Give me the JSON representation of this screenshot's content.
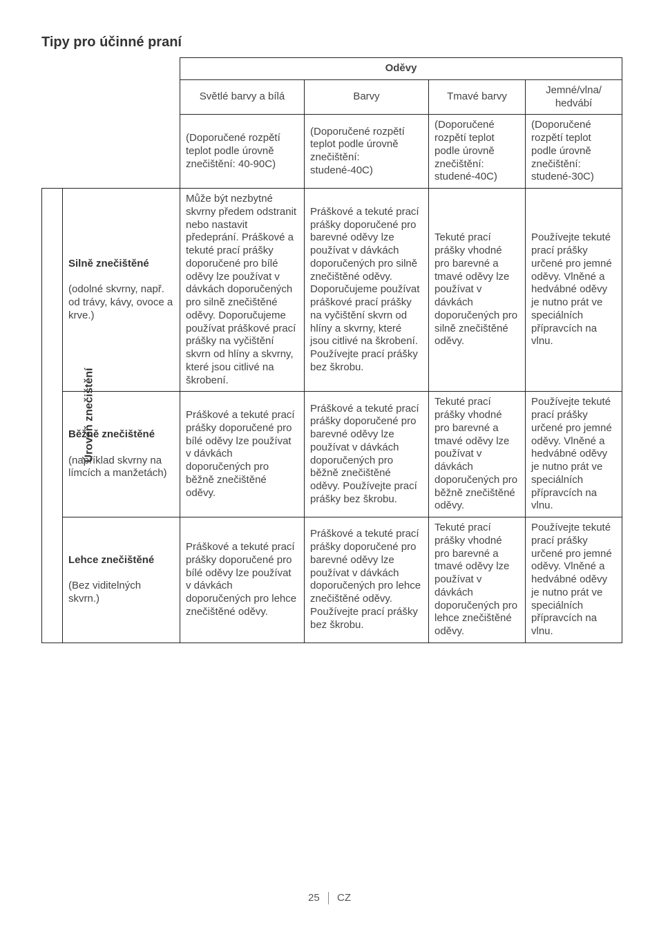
{
  "title": "Tipy pro účinné praní",
  "super_header": "Oděvy",
  "columns": {
    "c1": "Světlé barvy a bílá",
    "c2": "Barvy",
    "c3": "Tmavé barvy",
    "c4": "Jemné/vlna/\nhedvábí"
  },
  "temp_row": {
    "c1": "(Doporučené rozpětí teplot podle úrovně znečištění: 40-90C)",
    "c2": "(Doporučené rozpětí teplot podle úrovně znečištění: studené-40C)",
    "c3": "(Doporučené rozpětí teplot podle úrovně znečištění: studené-40C)",
    "c4": "(Doporučené rozpětí teplot podle úrovně znečištění: studené-30C)"
  },
  "side_label": "Úroveň znečištění",
  "rows": [
    {
      "head_bold": "Silně znečištěné",
      "head_rest": "(odolné skvrny, např. od trávy, kávy, ovoce a krve.)",
      "c1": "Může být nezbytné skvrny předem odstranit nebo nastavit předeprání. Práškové a tekuté prací prášky doporučené pro bílé oděvy lze používat v dávkách doporučených pro silně znečištěné oděvy. Doporučujeme používat práškové prací prášky na vyčištění skvrn od hlíny a skvrny, které jsou citlivé na škrobení.",
      "c2": "Práškové a tekuté prací prášky doporučené pro barevné oděvy lze používat v dávkách doporučených pro silně znečištěné oděvy. Doporučujeme používat práškové prací prášky na vyčištění skvrn od hlíny a skvrny, které jsou citlivé na škrobení. Používejte prací prášky bez škrobu.",
      "c3": "Tekuté prací prášky vhodné pro barevné a tmavé oděvy lze používat v dávkách doporučených pro silně znečištěné oděvy.",
      "c4": "Používejte tekuté prací prášky určené pro jemné oděvy. Vlněné a hedvábné oděvy je nutno prát ve speciálních přípravcích na vlnu."
    },
    {
      "head_bold": "Běžně znečištěné",
      "head_rest": "(například skvrny na límcích a manžetách)",
      "c1": "Práškové a tekuté prací prášky doporučené pro bílé oděvy lze používat v dávkách doporučených pro běžně znečištěné oděvy.",
      "c2": "Práškové a tekuté prací prášky doporučené pro barevné oděvy lze používat v dávkách doporučených pro běžně znečištěné oděvy. Používejte prací prášky bez škrobu.",
      "c3": "Tekuté prací prášky vhodné pro barevné a tmavé oděvy lze používat v dávkách doporučených pro běžně znečištěné oděvy.",
      "c4": "Používejte tekuté prací prášky určené pro jemné oděvy. Vlněné a hedvábné oděvy je nutno prát ve speciálních přípravcích na vlnu."
    },
    {
      "head_bold": "Lehce znečištěné",
      "head_rest": "(Bez viditelných skvrn.)",
      "c1": "Práškové a tekuté prací prášky doporučené pro bílé oděvy lze používat v dávkách doporučených pro lehce znečištěné oděvy.",
      "c2": "Práškové a tekuté prací prášky doporučené pro barevné oděvy lze používat v dávkách doporučených pro lehce znečištěné oděvy. Používejte prací prášky bez škrobu.",
      "c3": "Tekuté prací prášky vhodné pro barevné a tmavé oděvy lze používat v dávkách doporučených pro lehce znečištěné oděvy.",
      "c4": "Používejte tekuté prací prášky určené pro jemné oděvy. Vlněné a hedvábné oděvy je nutno prát ve speciálních přípravcích na vlnu."
    }
  ],
  "footer": {
    "page": "25",
    "lang": "CZ"
  }
}
